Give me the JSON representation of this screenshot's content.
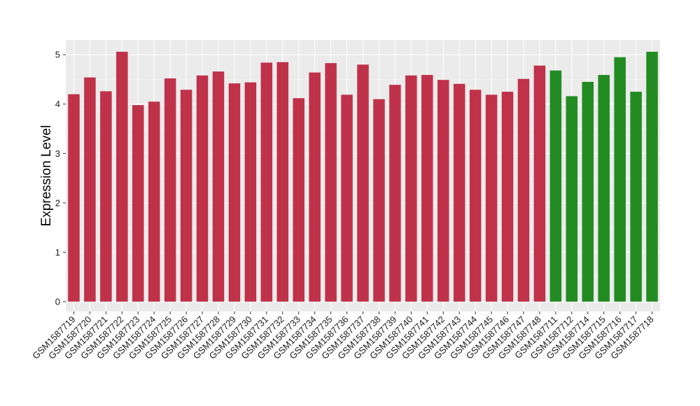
{
  "chart_data": {
    "type": "bar",
    "ylabel": "Expression Level",
    "xlabel": "",
    "ylim": [
      -0.2,
      5.3
    ],
    "yticks": [
      0,
      1,
      2,
      3,
      4,
      5
    ],
    "grid": true,
    "background": "#ebebeb",
    "colors": {
      "group1": "#c0314a",
      "group2": "#228b22"
    },
    "categories": [
      "GSM1587719",
      "GSM1587720",
      "GSM1587721",
      "GSM1587722",
      "GSM1587723",
      "GSM1587724",
      "GSM1587725",
      "GSM1587726",
      "GSM1587727",
      "GSM1587728",
      "GSM1587729",
      "GSM1587730",
      "GSM1587731",
      "GSM1587732",
      "GSM1587733",
      "GSM1587734",
      "GSM1587735",
      "GSM1587736",
      "GSM1587737",
      "GSM1587738",
      "GSM1587739",
      "GSM1587740",
      "GSM1587741",
      "GSM1587742",
      "GSM1587743",
      "GSM1587744",
      "GSM1587745",
      "GSM1587746",
      "GSM1587747",
      "GSM1587748",
      "GSM1587711",
      "GSM1587712",
      "GSM1587714",
      "GSM1587715",
      "GSM1587716",
      "GSM1587717",
      "GSM1587718"
    ],
    "values": [
      4.2,
      4.54,
      4.26,
      5.06,
      3.98,
      4.05,
      4.52,
      4.29,
      4.58,
      4.66,
      4.42,
      4.44,
      4.84,
      4.85,
      4.12,
      4.64,
      4.83,
      4.19,
      4.8,
      4.1,
      4.39,
      4.58,
      4.59,
      4.49,
      4.41,
      4.29,
      4.19,
      4.25,
      4.51,
      4.78,
      4.68,
      4.16,
      4.45,
      4.59,
      4.95,
      4.25,
      5.06
    ],
    "groups": [
      "group1",
      "group1",
      "group1",
      "group1",
      "group1",
      "group1",
      "group1",
      "group1",
      "group1",
      "group1",
      "group1",
      "group1",
      "group1",
      "group1",
      "group1",
      "group1",
      "group1",
      "group1",
      "group1",
      "group1",
      "group1",
      "group1",
      "group1",
      "group1",
      "group1",
      "group1",
      "group1",
      "group1",
      "group1",
      "group1",
      "group2",
      "group2",
      "group2",
      "group2",
      "group2",
      "group2",
      "group2"
    ]
  }
}
